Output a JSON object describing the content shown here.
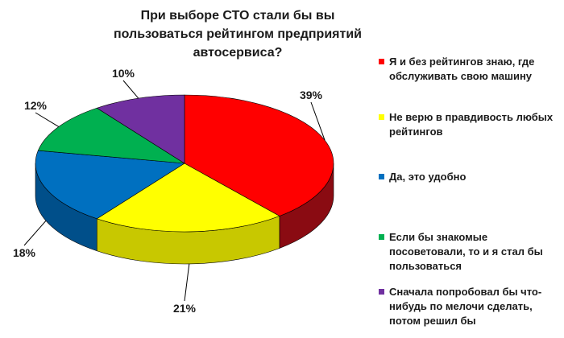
{
  "chart_data": {
    "type": "pie",
    "title": "При выборе СТО стали бы вы пользоваться рейтингом предприятий автосервиса?",
    "legend_position": "right",
    "slices": [
      {
        "label": "Я и без рейтингов знаю, где обслуживать свою машину",
        "value": 39,
        "value_label": "39%",
        "color": "#ff0000",
        "side_color": "#8a0b12"
      },
      {
        "label": "Не верю в правдивость любых рейтингов",
        "value": 21,
        "value_label": "21%",
        "color": "#ffff00",
        "side_color": "#c8c800"
      },
      {
        "label": "Да, это удобно",
        "value": 18,
        "value_label": "18%",
        "color": "#0070c0",
        "side_color": "#004f8a"
      },
      {
        "label": "Если бы знакомые посоветовали, то и я стал бы пользоваться",
        "value": 12,
        "value_label": "12%",
        "color": "#00b050",
        "side_color": "#007a38"
      },
      {
        "label": "Сначала попробовал бы что-нибудь по мелочи сделать, потом решил бы",
        "value": 10,
        "value_label": "10%",
        "color": "#7030a0",
        "side_color": "#4a1f6b"
      }
    ]
  }
}
